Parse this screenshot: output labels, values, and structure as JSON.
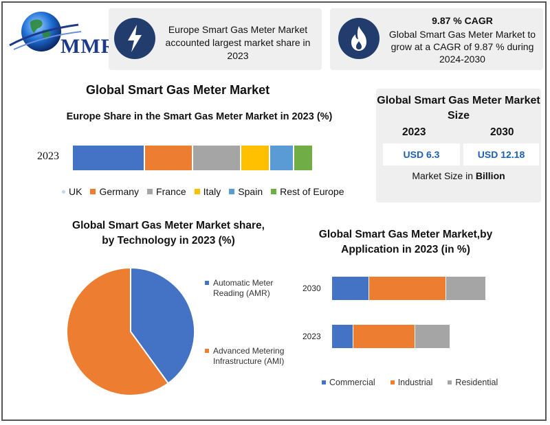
{
  "logo": {
    "text": "MMR"
  },
  "card_europe": {
    "icon": "lightning-icon",
    "text": "Europe Smart Gas Meter Market accounted largest market share in 2023"
  },
  "card_cagr": {
    "icon": "flame-icon",
    "title": "9.87 % CAGR",
    "text": "Global Smart Gas Meter Market to grow at a CAGR of 9.87 % during 2024-2030"
  },
  "main_title": "Global Smart Gas Meter Market",
  "market_size": {
    "title": "Global Smart Gas Meter Market Size",
    "year_a": "2023",
    "year_b": "2030",
    "value_a": "USD 6.3",
    "value_b": "USD 12.18",
    "note_prefix": "Market Size in ",
    "note_bold": "Billion"
  },
  "colors": {
    "blue": "#4472c4",
    "orange": "#ed7d31",
    "gray": "#a5a5a5",
    "yellow": "#ffc000",
    "lightblue": "#5b9bd5",
    "green": "#70ad47",
    "icon_bg": "#223c6e"
  },
  "chart_data": [
    {
      "type": "bar",
      "orientation": "horizontal-stacked",
      "title": "Europe Share in the Smart Gas Meter Market in 2023 (%)",
      "categories": [
        "2023"
      ],
      "series": [
        {
          "name": "UK",
          "values": [
            30
          ],
          "color": "#4472c4"
        },
        {
          "name": "Germany",
          "values": [
            20
          ],
          "color": "#ed7d31"
        },
        {
          "name": "France",
          "values": [
            20
          ],
          "color": "#a5a5a5"
        },
        {
          "name": "Italy",
          "values": [
            12
          ],
          "color": "#ffc000"
        },
        {
          "name": "Spain",
          "values": [
            10
          ],
          "color": "#5b9bd5"
        },
        {
          "name": "Rest of Europe",
          "values": [
            8
          ],
          "color": "#70ad47"
        }
      ],
      "legend": "bottom"
    },
    {
      "type": "pie",
      "title": "Global Smart Gas Meter Market share, by Technology in 2023 (%)",
      "labels": [
        "Automatic Meter Reading (AMR)",
        "Advanced Metering Infrastructure (AMI)"
      ],
      "values": [
        40,
        60
      ],
      "colors": [
        "#4472c4",
        "#ed7d31"
      ],
      "legend": "right"
    },
    {
      "type": "bar",
      "orientation": "horizontal-stacked",
      "title": "Global Smart Gas Meter Market,by Application in 2023 (in %)",
      "categories": [
        "2030",
        "2023"
      ],
      "series": [
        {
          "name": "Commercial",
          "values": [
            24,
            14
          ],
          "color": "#4472c4"
        },
        {
          "name": "Industrial",
          "values": [
            50,
            40
          ],
          "color": "#ed7d31"
        },
        {
          "name": "Residential",
          "values": [
            26,
            23
          ],
          "color": "#a5a5a5"
        }
      ],
      "legend": "bottom"
    }
  ]
}
